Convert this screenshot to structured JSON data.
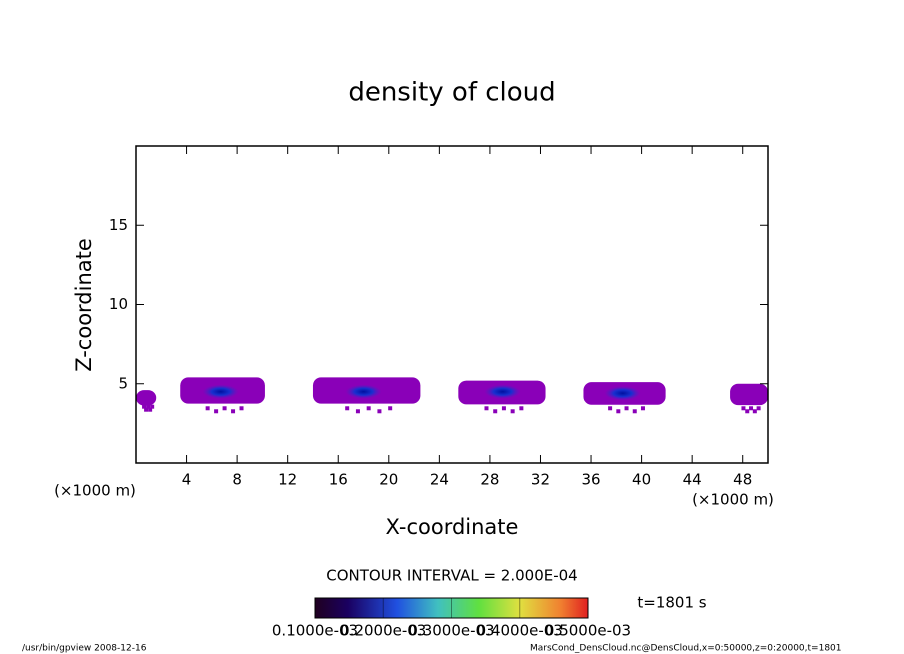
{
  "chart_data": {
    "type": "contour",
    "title": "density of cloud",
    "x_label": "X-coordinate",
    "y_label": "Z-coordinate",
    "x_unit": "(×1000 m)",
    "y_unit": "(×1000 m)",
    "xlim": [
      0,
      50
    ],
    "ylim": [
      0,
      20
    ],
    "xticks": [
      4,
      8,
      12,
      16,
      20,
      24,
      28,
      32,
      36,
      40,
      44,
      48
    ],
    "yticks": [
      5,
      10,
      15
    ],
    "color": "#8a00b8",
    "clouds": [
      {
        "x": [
          0,
          1.6
        ],
        "z": [
          3.3,
          4.6
        ]
      },
      {
        "x": [
          3.5,
          10.2
        ],
        "z": [
          3.2,
          5.4
        ]
      },
      {
        "x": [
          14,
          22.5
        ],
        "z": [
          3.2,
          5.4
        ]
      },
      {
        "x": [
          25.5,
          32.4
        ],
        "z": [
          3.2,
          5.2
        ]
      },
      {
        "x": [
          35.4,
          41.9
        ],
        "z": [
          3.2,
          5.1
        ]
      },
      {
        "x": [
          47,
          50
        ],
        "z": [
          3.2,
          5
        ]
      }
    ],
    "cores": [
      {
        "x": 6.7,
        "z": 4.5
      },
      {
        "x": 18,
        "z": 4.5
      },
      {
        "x": 29,
        "z": 4.5
      },
      {
        "x": 38.5,
        "z": 4.4
      }
    ],
    "contour_interval": "CONTOUR INTERVAL = 2.000E-04",
    "time": "t=1801 s",
    "colorbar": {
      "range": [
        0.0001,
        0.0005
      ],
      "ticks": [
        {
          "value": 0.0001,
          "label": "0.1000e-03"
        },
        {
          "value": 0.0002,
          "label": "0.2000e-03"
        },
        {
          "value": 0.0003,
          "label": "0.3000e-03"
        },
        {
          "value": 0.0004,
          "label": "0.4000e-03"
        },
        {
          "value": 0.0005,
          "label": "0.5000e-03"
        }
      ]
    },
    "footer_left": "/usr/bin/gpview   2008-12-16",
    "footer_right": "MarsCond_DensCloud.nc@DensCloud,x=0:50000,z=0:20000,t=1801"
  }
}
